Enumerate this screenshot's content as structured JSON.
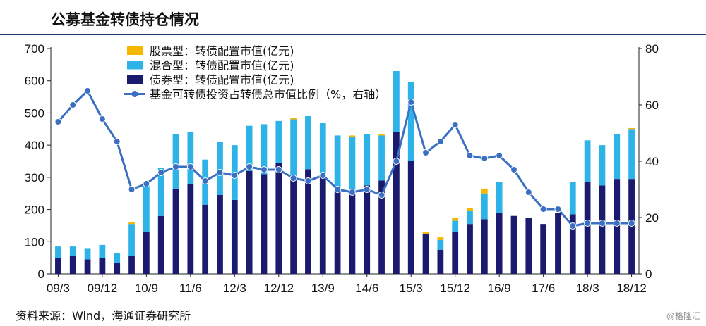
{
  "title": "公募基金转债持仓情况",
  "source": "资料来源：Wind，海通证券研究所",
  "watermark": "@格隆汇",
  "colors": {
    "stock": "#F4B800",
    "mixed": "#2DB3E8",
    "bond": "#1A1A6E",
    "ratio": "#3A6FC2",
    "axis": "#222222",
    "title_rule": "#1f3b73"
  },
  "chart_data": {
    "type": "bar",
    "stacked": true,
    "x_tick_labels": [
      "09/3",
      "09/12",
      "10/9",
      "11/6",
      "12/3",
      "12/12",
      "13/9",
      "14/6",
      "15/3",
      "15/12",
      "16/9",
      "17/6",
      "18/3",
      "18/12"
    ],
    "legend": [
      "股票型：转债配置市值(亿元)",
      "混合型：转债配置市值(亿元)",
      "债券型：转债配置市值(亿元)",
      "基金可转债投资占转债总市值比例（%，右轴）"
    ],
    "legend_position": "top-left",
    "y_left": {
      "min": 0,
      "max": 700,
      "ticks": [
        0,
        100,
        200,
        300,
        400,
        500,
        600,
        700
      ]
    },
    "y_right": {
      "min": 0,
      "max": 80,
      "ticks": [
        0,
        20,
        40,
        60,
        80
      ]
    },
    "periods": 40,
    "series": [
      {
        "name": "股票型：转债配置市值(亿元)",
        "kind": "bar",
        "values": [
          0,
          0,
          0,
          0,
          0,
          5,
          0,
          0,
          0,
          0,
          0,
          0,
          0,
          0,
          0,
          0,
          5,
          0,
          0,
          0,
          5,
          0,
          5,
          0,
          0,
          5,
          10,
          10,
          10,
          15,
          0,
          0,
          0,
          0,
          0,
          0,
          0,
          0,
          0,
          3
        ]
      },
      {
        "name": "混合型：转债配置市值(亿元)",
        "kind": "bar",
        "values": [
          35,
          30,
          35,
          40,
          30,
          100,
          155,
          150,
          170,
          160,
          140,
          165,
          170,
          140,
          155,
          130,
          180,
          165,
          165,
          170,
          165,
          160,
          140,
          190,
          245,
          0,
          30,
          35,
          40,
          80,
          95,
          0,
          0,
          0,
          0,
          100,
          130,
          125,
          140,
          155
        ]
      },
      {
        "name": "债券型：转债配置市值(亿元)",
        "kind": "bar",
        "values": [
          50,
          55,
          45,
          50,
          35,
          55,
          130,
          180,
          265,
          280,
          215,
          245,
          230,
          320,
          310,
          345,
          300,
          325,
          305,
          260,
          260,
          275,
          290,
          440,
          350,
          125,
          75,
          130,
          155,
          170,
          190,
          180,
          175,
          155,
          190,
          185,
          285,
          275,
          295,
          295
        ]
      },
      {
        "name": "基金可转债投资占转债总市值比例（%，右轴）",
        "kind": "line",
        "axis": "right",
        "values": [
          54,
          60,
          65,
          55,
          47,
          30,
          32,
          36,
          38,
          38,
          33,
          36,
          35,
          38,
          37,
          37,
          34,
          33,
          35,
          30,
          29,
          30,
          28,
          40,
          61,
          43,
          47,
          53,
          42,
          41,
          42,
          37,
          29,
          23,
          23,
          17,
          18,
          18,
          18,
          18
        ]
      }
    ]
  }
}
